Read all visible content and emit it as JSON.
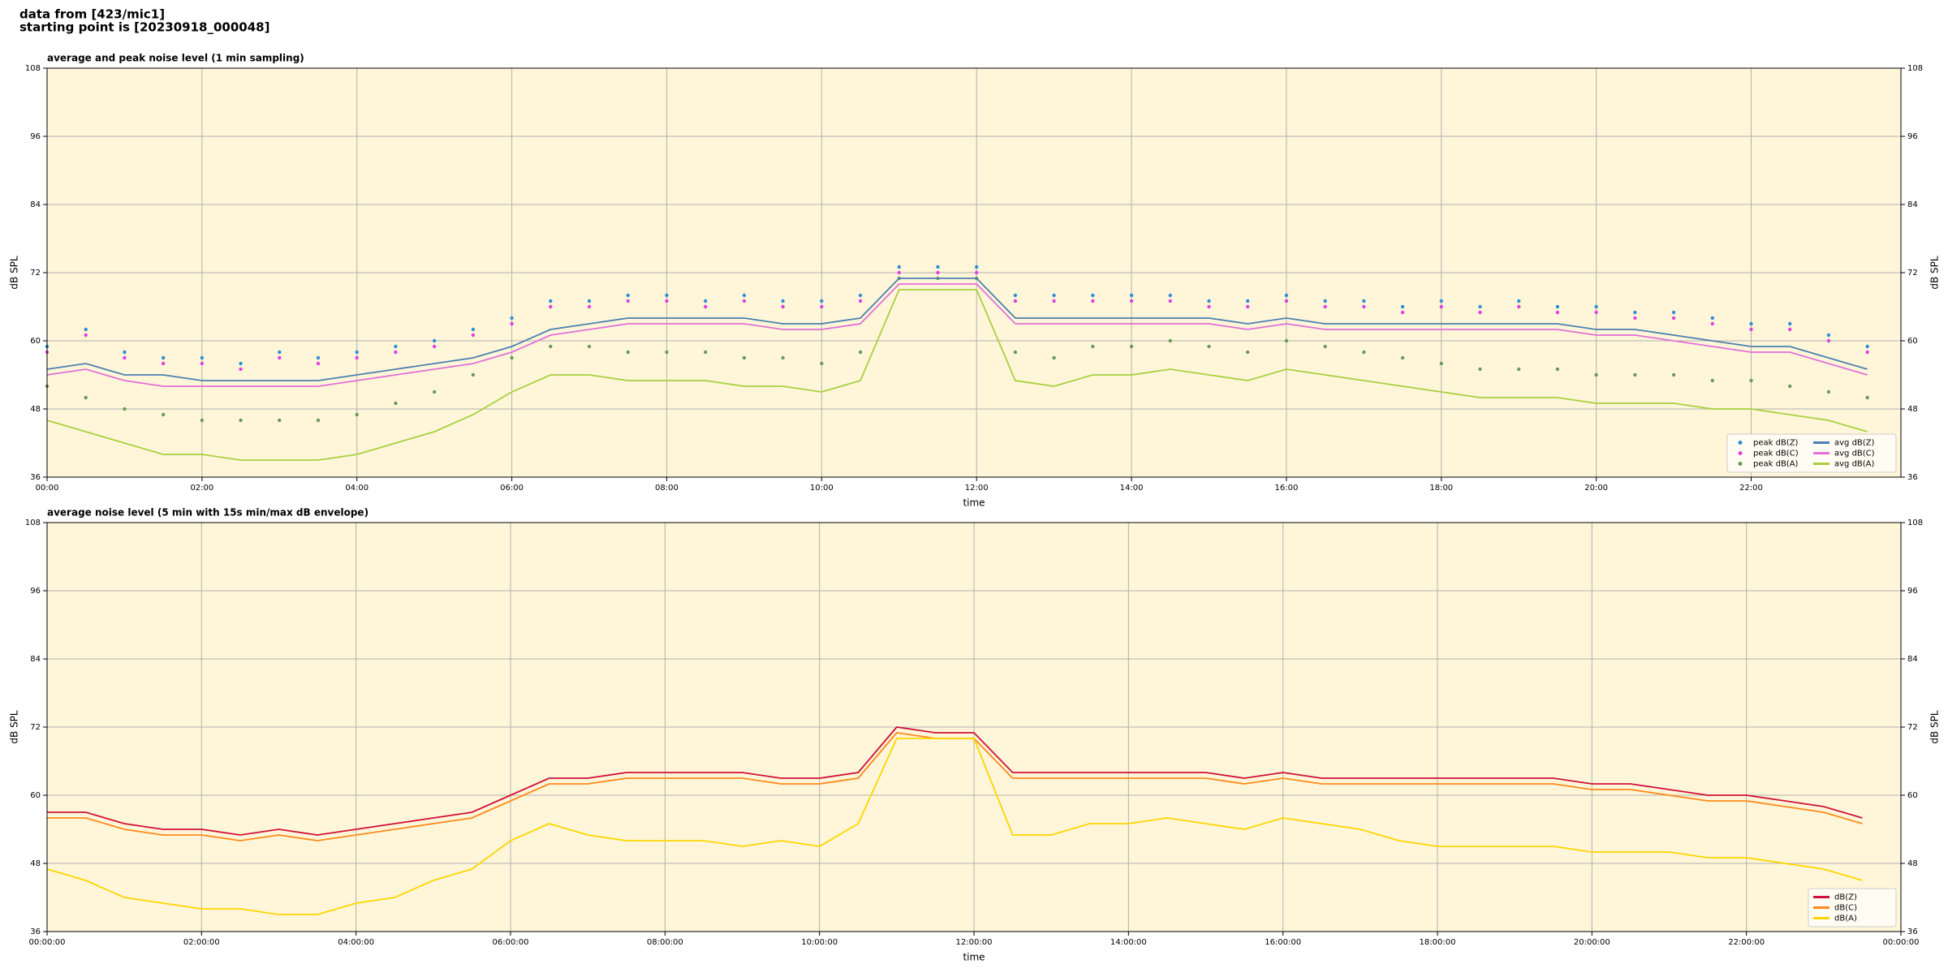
{
  "header": {
    "line1": "data from [423/mic1]",
    "line2": "starting point is [20230918_000048]"
  },
  "chart_data": [
    {
      "type": "line",
      "title": "average and peak noise level (1 min sampling)",
      "xlabel": "time",
      "ylabel": "dB SPL",
      "background": "#fff6d9",
      "grid": true,
      "legend": "lower right",
      "legend_columns": 2,
      "xlim": [
        0,
        1436
      ],
      "ylim": [
        36,
        108
      ],
      "yticks": [
        36,
        48,
        60,
        72,
        84,
        96,
        108
      ],
      "xticks": [
        {
          "value": 0,
          "label": "00:00"
        },
        {
          "value": 120,
          "label": "02:00"
        },
        {
          "value": 240,
          "label": "04:00"
        },
        {
          "value": 360,
          "label": "06:00"
        },
        {
          "value": 480,
          "label": "08:00"
        },
        {
          "value": 600,
          "label": "10:00"
        },
        {
          "value": 720,
          "label": "12:00"
        },
        {
          "value": 840,
          "label": "14:00"
        },
        {
          "value": 960,
          "label": "16:00"
        },
        {
          "value": 1080,
          "label": "18:00"
        },
        {
          "value": 1200,
          "label": "20:00"
        },
        {
          "value": 1320,
          "label": "22:00"
        }
      ],
      "x": [
        0,
        30,
        60,
        90,
        120,
        150,
        180,
        210,
        240,
        270,
        300,
        330,
        360,
        390,
        420,
        450,
        480,
        510,
        540,
        570,
        600,
        630,
        660,
        690,
        720,
        750,
        780,
        810,
        840,
        870,
        900,
        930,
        960,
        990,
        1020,
        1050,
        1080,
        1110,
        1140,
        1170,
        1200,
        1230,
        1260,
        1290,
        1320,
        1350,
        1380,
        1410
      ],
      "series": [
        {
          "name": "peak dB(Z)",
          "color": "#2e8fd6",
          "style": "dots",
          "values": [
            59,
            62,
            58,
            57,
            57,
            56,
            58,
            57,
            58,
            59,
            60,
            62,
            64,
            67,
            67,
            68,
            68,
            67,
            68,
            67,
            67,
            68,
            73,
            73,
            73,
            68,
            68,
            68,
            68,
            68,
            67,
            67,
            68,
            67,
            67,
            66,
            67,
            66,
            67,
            66,
            66,
            65,
            65,
            64,
            63,
            63,
            61,
            59
          ]
        },
        {
          "name": "peak dB(C)",
          "color": "#e040e0",
          "style": "dots",
          "values": [
            58,
            61,
            57,
            56,
            56,
            55,
            57,
            56,
            57,
            58,
            59,
            61,
            63,
            66,
            66,
            67,
            67,
            66,
            67,
            66,
            66,
            67,
            72,
            72,
            72,
            67,
            67,
            67,
            67,
            67,
            66,
            66,
            67,
            66,
            66,
            65,
            66,
            65,
            66,
            65,
            65,
            64,
            64,
            63,
            62,
            62,
            60,
            58
          ]
        },
        {
          "name": "peak dB(A)",
          "color": "#6a9a5a",
          "style": "dots",
          "values": [
            52,
            50,
            48,
            47,
            46,
            46,
            46,
            46,
            47,
            49,
            51,
            54,
            57,
            59,
            59,
            58,
            58,
            58,
            57,
            57,
            56,
            58,
            71,
            71,
            71,
            58,
            57,
            59,
            59,
            60,
            59,
            58,
            60,
            59,
            58,
            57,
            56,
            55,
            55,
            55,
            54,
            54,
            54,
            53,
            53,
            52,
            51,
            50
          ]
        },
        {
          "name": "avg dB(Z)",
          "color": "#4a80b0",
          "style": "line",
          "values": [
            55,
            56,
            54,
            54,
            53,
            53,
            53,
            53,
            54,
            55,
            56,
            57,
            59,
            62,
            63,
            64,
            64,
            64,
            64,
            63,
            63,
            64,
            71,
            71,
            71,
            64,
            64,
            64,
            64,
            64,
            64,
            63,
            64,
            63,
            63,
            63,
            63,
            63,
            63,
            63,
            62,
            62,
            61,
            60,
            59,
            59,
            57,
            55
          ]
        },
        {
          "name": "avg dB(C)",
          "color": "#e070d8",
          "style": "line",
          "values": [
            54,
            55,
            53,
            52,
            52,
            52,
            52,
            52,
            53,
            54,
            55,
            56,
            58,
            61,
            62,
            63,
            63,
            63,
            63,
            62,
            62,
            63,
            70,
            70,
            70,
            63,
            63,
            63,
            63,
            63,
            63,
            62,
            63,
            62,
            62,
            62,
            62,
            62,
            62,
            62,
            61,
            61,
            60,
            59,
            58,
            58,
            56,
            54
          ]
        },
        {
          "name": "avg dB(A)",
          "color": "#a8d040",
          "style": "line",
          "values": [
            46,
            44,
            42,
            40,
            40,
            39,
            39,
            39,
            40,
            42,
            44,
            47,
            51,
            54,
            54,
            53,
            53,
            53,
            52,
            52,
            51,
            53,
            69,
            69,
            69,
            53,
            52,
            54,
            54,
            55,
            54,
            53,
            55,
            54,
            53,
            52,
            51,
            50,
            50,
            50,
            49,
            49,
            49,
            48,
            48,
            47,
            46,
            44
          ]
        }
      ]
    },
    {
      "type": "line",
      "title": "average noise level (5 min with 15s min/max dB envelope)",
      "xlabel": "time",
      "ylabel": "dB SPL",
      "background": "#fff6d9",
      "grid": true,
      "legend": "lower right",
      "legend_columns": 1,
      "xlim": [
        0,
        1440
      ],
      "ylim": [
        36,
        108
      ],
      "yticks": [
        36,
        48,
        60,
        72,
        84,
        96,
        108
      ],
      "xticks": [
        {
          "value": 0,
          "label": "00:00:00"
        },
        {
          "value": 120,
          "label": "02:00:00"
        },
        {
          "value": 240,
          "label": "04:00:00"
        },
        {
          "value": 360,
          "label": "06:00:00"
        },
        {
          "value": 480,
          "label": "08:00:00"
        },
        {
          "value": 600,
          "label": "10:00:00"
        },
        {
          "value": 720,
          "label": "12:00:00"
        },
        {
          "value": 840,
          "label": "14:00:00"
        },
        {
          "value": 960,
          "label": "16:00:00"
        },
        {
          "value": 1080,
          "label": "18:00:00"
        },
        {
          "value": 1200,
          "label": "20:00:00"
        },
        {
          "value": 1320,
          "label": "22:00:00"
        },
        {
          "value": 1440,
          "label": "00:00:00"
        }
      ],
      "x": [
        0,
        30,
        60,
        90,
        120,
        150,
        180,
        210,
        240,
        270,
        300,
        330,
        360,
        390,
        420,
        450,
        480,
        510,
        540,
        570,
        600,
        630,
        660,
        690,
        720,
        750,
        780,
        810,
        840,
        870,
        900,
        930,
        960,
        990,
        1020,
        1050,
        1080,
        1110,
        1140,
        1170,
        1200,
        1230,
        1260,
        1290,
        1320,
        1350,
        1380,
        1410
      ],
      "series": [
        {
          "name": "dB(Z)",
          "color": "#d0103a",
          "style": "line",
          "values": [
            57,
            57,
            55,
            54,
            54,
            53,
            54,
            53,
            54,
            55,
            56,
            57,
            60,
            63,
            63,
            64,
            64,
            64,
            64,
            63,
            63,
            64,
            72,
            71,
            71,
            64,
            64,
            64,
            64,
            64,
            64,
            63,
            64,
            63,
            63,
            63,
            63,
            63,
            63,
            63,
            62,
            62,
            61,
            60,
            60,
            59,
            58,
            56
          ]
        },
        {
          "name": "dB(C)",
          "color": "#ff8a1a",
          "style": "line",
          "values": [
            56,
            56,
            54,
            53,
            53,
            52,
            53,
            52,
            53,
            54,
            55,
            56,
            59,
            62,
            62,
            63,
            63,
            63,
            63,
            62,
            62,
            63,
            71,
            70,
            70,
            63,
            63,
            63,
            63,
            63,
            63,
            62,
            63,
            62,
            62,
            62,
            62,
            62,
            62,
            62,
            61,
            61,
            60,
            59,
            59,
            58,
            57,
            55
          ]
        },
        {
          "name": "dB(A)",
          "color": "#ffd500",
          "style": "line",
          "values": [
            47,
            45,
            42,
            41,
            40,
            40,
            39,
            39,
            41,
            42,
            45,
            47,
            52,
            55,
            53,
            52,
            52,
            52,
            51,
            52,
            51,
            55,
            70,
            70,
            70,
            53,
            53,
            55,
            55,
            56,
            55,
            54,
            56,
            55,
            54,
            52,
            51,
            51,
            51,
            51,
            50,
            50,
            50,
            49,
            49,
            48,
            47,
            45
          ]
        }
      ]
    }
  ]
}
